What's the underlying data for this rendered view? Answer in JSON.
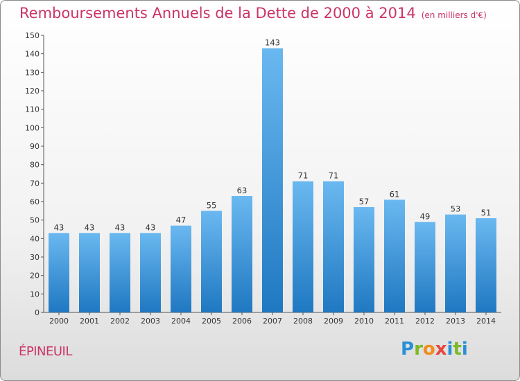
{
  "page": {
    "commune": "ÉPINEUIL",
    "logo_letters": [
      "P",
      "r",
      "o",
      "x",
      "i",
      "t",
      "i"
    ]
  },
  "chart_data": {
    "type": "bar",
    "title": "Remboursements Annuels de la Dette de 2000 à 2014",
    "subtitle": "(en milliers d'€)",
    "xlabel": "",
    "ylabel": "",
    "categories": [
      "2000",
      "2001",
      "2002",
      "2003",
      "2004",
      "2005",
      "2006",
      "2007",
      "2008",
      "2009",
      "2010",
      "2011",
      "2012",
      "2013",
      "2014"
    ],
    "values": [
      43,
      43,
      43,
      43,
      47,
      55,
      63,
      143,
      71,
      71,
      57,
      61,
      49,
      53,
      51
    ],
    "ylim": [
      0,
      150
    ],
    "yticks": [
      0,
      10,
      20,
      30,
      40,
      50,
      60,
      70,
      80,
      90,
      100,
      110,
      120,
      130,
      140,
      150
    ],
    "grid": false,
    "colors": {
      "bar_top": "#6ab8f0",
      "bar_bottom": "#1f78c1",
      "title": "#cc3366"
    }
  }
}
